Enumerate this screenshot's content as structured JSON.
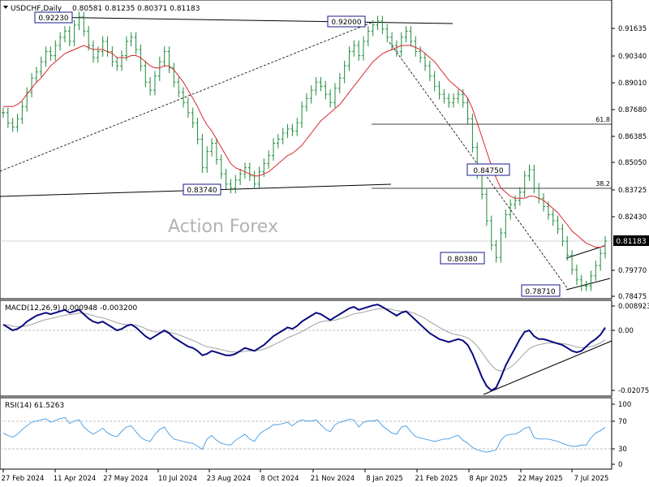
{
  "header": {
    "symbol": "USDCHF,Daily",
    "ohlc": "0.80581 0.81235 0.80371 0.81183"
  },
  "watermark": "Action Forex",
  "colors": {
    "price": "#1e8b3a",
    "ma": "#d9272e",
    "macd_line": "#0a0a80",
    "macd_signal": "#a0a0a0",
    "rsi": "#2e8fe0",
    "trendline": "#111111",
    "callout_border": "#1a1a8c",
    "last_price_bg": "#000000"
  },
  "chart_data": [
    {
      "type": "candlestick",
      "panel": "price",
      "series": [
        {
          "name": "price"
        },
        {
          "name": "moving-average"
        }
      ],
      "yticks": [
        "0.91635",
        "0.90340",
        "0.89010",
        "0.87680",
        "0.86385",
        "0.85050",
        "0.83725",
        "0.82430",
        "0.81183",
        "0.79770",
        "0.78475"
      ],
      "last_price": "0.81183",
      "xticks": [
        "27 Feb 2024",
        "11 Apr 2024",
        "27 May 2024",
        "10 Jul 2024",
        "23 Aug 2024",
        "8 Oct 2024",
        "21 Nov 2024",
        "8 Jan 2025",
        "21 Feb 2025",
        "8 Apr 2025",
        "22 May 2025",
        "7 Jul 2025"
      ],
      "callouts": [
        "0.92230",
        "0.92000",
        "0.83740",
        "0.84750",
        "0.80380",
        "0.78710"
      ],
      "fib_labels": [
        "61.8",
        "38.2"
      ],
      "close": [
        0.875,
        0.87,
        0.868,
        0.872,
        0.878,
        0.885,
        0.892,
        0.895,
        0.9,
        0.905,
        0.903,
        0.908,
        0.912,
        0.915,
        0.91,
        0.918,
        0.922,
        0.915,
        0.908,
        0.902,
        0.905,
        0.91,
        0.905,
        0.9,
        0.898,
        0.903,
        0.91,
        0.912,
        0.906,
        0.898,
        0.89,
        0.886,
        0.893,
        0.9,
        0.905,
        0.897,
        0.89,
        0.885,
        0.88,
        0.875,
        0.87,
        0.862,
        0.848,
        0.856,
        0.86,
        0.852,
        0.845,
        0.84,
        0.838,
        0.842,
        0.845,
        0.848,
        0.844,
        0.84,
        0.846,
        0.85,
        0.854,
        0.86,
        0.862,
        0.865,
        0.867,
        0.866,
        0.87,
        0.878,
        0.882,
        0.886,
        0.89,
        0.888,
        0.884,
        0.88,
        0.887,
        0.892,
        0.898,
        0.905,
        0.908,
        0.903,
        0.91,
        0.915,
        0.918,
        0.92,
        0.916,
        0.912,
        0.908,
        0.905,
        0.912,
        0.915,
        0.91,
        0.905,
        0.902,
        0.898,
        0.893,
        0.888,
        0.884,
        0.882,
        0.88,
        0.882,
        0.884,
        0.88,
        0.872,
        0.858,
        0.845,
        0.835,
        0.822,
        0.81,
        0.804,
        0.816,
        0.825,
        0.83,
        0.832,
        0.836,
        0.844,
        0.847,
        0.838,
        0.833,
        0.829,
        0.825,
        0.822,
        0.818,
        0.812,
        0.805,
        0.798,
        0.793,
        0.79,
        0.79,
        0.795,
        0.8,
        0.806,
        0.812
      ],
      "ma": [
        0.878,
        0.878,
        0.878,
        0.879,
        0.881,
        0.884,
        0.887,
        0.89,
        0.892,
        0.895,
        0.898,
        0.9,
        0.902,
        0.904,
        0.905,
        0.906,
        0.907,
        0.908,
        0.907,
        0.906,
        0.906,
        0.906,
        0.905,
        0.904,
        0.902,
        0.902,
        0.902,
        0.903,
        0.903,
        0.902,
        0.9,
        0.898,
        0.897,
        0.897,
        0.898,
        0.898,
        0.896,
        0.893,
        0.89,
        0.886,
        0.882,
        0.878,
        0.873,
        0.869,
        0.866,
        0.862,
        0.858,
        0.854,
        0.85,
        0.848,
        0.847,
        0.846,
        0.845,
        0.844,
        0.844,
        0.845,
        0.846,
        0.848,
        0.85,
        0.852,
        0.854,
        0.855,
        0.857,
        0.859,
        0.862,
        0.865,
        0.868,
        0.871,
        0.873,
        0.875,
        0.877,
        0.879,
        0.882,
        0.885,
        0.888,
        0.891,
        0.894,
        0.897,
        0.9,
        0.902,
        0.904,
        0.905,
        0.906,
        0.907,
        0.908,
        0.908,
        0.908,
        0.907,
        0.906,
        0.904,
        0.902,
        0.9,
        0.897,
        0.894,
        0.891,
        0.889,
        0.887,
        0.885,
        0.882,
        0.877,
        0.87,
        0.863,
        0.856,
        0.849,
        0.843,
        0.838,
        0.836,
        0.834,
        0.833,
        0.833,
        0.833,
        0.834,
        0.834,
        0.833,
        0.832,
        0.83,
        0.828,
        0.826,
        0.823,
        0.82,
        0.817,
        0.815,
        0.813,
        0.811,
        0.81,
        0.809,
        0.809,
        0.81
      ]
    },
    {
      "type": "line",
      "panel": "macd",
      "label": "MACD(12,26,9) 0.000948 -0.003200",
      "yticks": [
        "0.008923",
        "0.00",
        "-0.020759"
      ],
      "series": [
        {
          "name": "macd",
          "values": [
            0.002,
            0.001,
            0.0,
            0.0005,
            0.0015,
            0.003,
            0.004,
            0.005,
            0.0055,
            0.006,
            0.0055,
            0.006,
            0.0065,
            0.007,
            0.006,
            0.0065,
            0.007,
            0.0055,
            0.004,
            0.003,
            0.0025,
            0.003,
            0.002,
            0.001,
            0.0,
            0.0005,
            0.0015,
            0.002,
            0.001,
            -0.0005,
            -0.002,
            -0.003,
            -0.002,
            -0.001,
            0.0,
            -0.001,
            -0.0025,
            -0.0035,
            -0.0045,
            -0.0055,
            -0.006,
            -0.007,
            -0.0085,
            -0.008,
            -0.007,
            -0.0075,
            -0.008,
            -0.0085,
            -0.0085,
            -0.008,
            -0.007,
            -0.006,
            -0.0065,
            -0.007,
            -0.006,
            -0.005,
            -0.0035,
            -0.002,
            -0.001,
            0.0,
            0.001,
            0.0005,
            0.0015,
            0.003,
            0.004,
            0.005,
            0.006,
            0.0055,
            0.0045,
            0.0035,
            0.0045,
            0.0055,
            0.0065,
            0.0075,
            0.008,
            0.007,
            0.0075,
            0.008,
            0.0085,
            0.0088,
            0.008,
            0.007,
            0.006,
            0.005,
            0.006,
            0.0065,
            0.005,
            0.0035,
            0.002,
            0.0005,
            -0.001,
            -0.002,
            -0.003,
            -0.0035,
            -0.004,
            -0.0035,
            -0.003,
            -0.0035,
            -0.005,
            -0.008,
            -0.012,
            -0.016,
            -0.019,
            -0.0205,
            -0.0195,
            -0.016,
            -0.012,
            -0.009,
            -0.006,
            -0.003,
            -0.0005,
            0.0,
            -0.002,
            -0.003,
            -0.003,
            -0.0035,
            -0.004,
            -0.0045,
            -0.005,
            -0.006,
            -0.007,
            -0.0075,
            -0.007,
            -0.0055,
            -0.004,
            -0.003,
            -0.0015,
            0.00095
          ]
        },
        {
          "name": "signal",
          "values": [
            0.002,
            0.0018,
            0.0014,
            0.0012,
            0.0013,
            0.0016,
            0.002,
            0.0026,
            0.0032,
            0.0037,
            0.004,
            0.0044,
            0.0048,
            0.0052,
            0.0054,
            0.0056,
            0.0059,
            0.0058,
            0.0055,
            0.005,
            0.0045,
            0.0042,
            0.0038,
            0.0032,
            0.0026,
            0.0022,
            0.002,
            0.002,
            0.0018,
            0.0013,
            0.0006,
            -0.0001,
            -0.0005,
            -0.0006,
            -0.0005,
            -0.0006,
            -0.001,
            -0.0015,
            -0.0021,
            -0.0028,
            -0.0034,
            -0.0041,
            -0.005,
            -0.0056,
            -0.0059,
            -0.0062,
            -0.0066,
            -0.007,
            -0.0073,
            -0.0074,
            -0.0074,
            -0.0071,
            -0.007,
            -0.007,
            -0.0068,
            -0.0064,
            -0.0058,
            -0.005,
            -0.0042,
            -0.0034,
            -0.0025,
            -0.0019,
            -0.0012,
            -0.0004,
            0.0005,
            0.0014,
            0.0023,
            0.0029,
            0.0032,
            0.0033,
            0.0035,
            0.0039,
            0.0044,
            0.005,
            0.0056,
            0.0059,
            0.0062,
            0.0066,
            0.007,
            0.0073,
            0.0075,
            0.0074,
            0.0071,
            0.0067,
            0.0065,
            0.0065,
            0.0062,
            0.0056,
            0.0049,
            0.004,
            0.003,
            0.002,
            0.001,
            0.0001,
            -0.0007,
            -0.0013,
            -0.0016,
            -0.002,
            -0.0026,
            -0.0037,
            -0.0054,
            -0.0075,
            -0.0098,
            -0.0119,
            -0.0134,
            -0.0139,
            -0.0135,
            -0.0126,
            -0.0113,
            -0.0096,
            -0.0078,
            -0.0062,
            -0.0054,
            -0.0049,
            -0.0046,
            -0.0043,
            -0.0043,
            -0.0043,
            -0.0045,
            -0.0048,
            -0.0052,
            -0.0057,
            -0.0059,
            -0.0058,
            -0.0055,
            -0.005,
            -0.0043,
            -0.0032
          ]
        }
      ]
    },
    {
      "type": "line",
      "panel": "rsi",
      "label": "RSI(14) 61.5263",
      "yticks": [
        "100",
        "70",
        "30",
        "0"
      ],
      "series": [
        {
          "name": "rsi",
          "values": [
            52,
            48,
            45,
            50,
            58,
            64,
            70,
            72,
            74,
            76,
            70,
            73,
            76,
            78,
            68,
            72,
            74,
            62,
            55,
            50,
            55,
            60,
            52,
            48,
            46,
            55,
            62,
            64,
            54,
            45,
            40,
            38,
            50,
            58,
            62,
            50,
            42,
            40,
            38,
            36,
            35,
            30,
            25,
            42,
            48,
            40,
            35,
            33,
            32,
            40,
            45,
            50,
            42,
            38,
            50,
            56,
            60,
            66,
            66,
            68,
            70,
            64,
            70,
            74,
            72,
            72,
            74,
            66,
            58,
            54,
            66,
            70,
            72,
            75,
            74,
            62,
            70,
            72,
            72,
            74,
            64,
            58,
            52,
            50,
            62,
            64,
            54,
            46,
            44,
            42,
            40,
            38,
            40,
            42,
            42,
            46,
            48,
            40,
            35,
            28,
            24,
            22,
            20,
            22,
            24,
            40,
            48,
            50,
            50,
            54,
            60,
            62,
            44,
            42,
            42,
            42,
            40,
            38,
            35,
            32,
            30,
            30,
            32,
            32,
            44,
            52,
            56,
            61.53
          ]
        }
      ]
    }
  ]
}
